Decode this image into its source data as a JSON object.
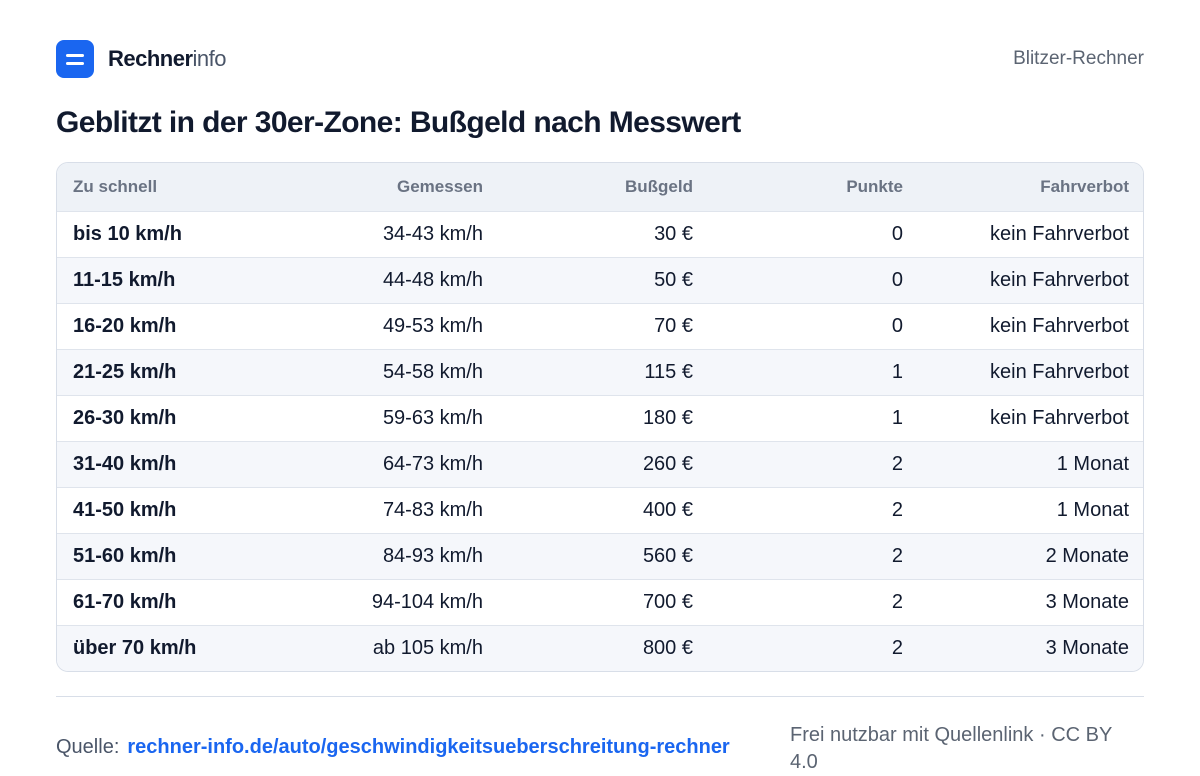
{
  "brand": {
    "bold": "Rechner",
    "light": "info"
  },
  "header": {
    "right_label": "Blitzer-Rechner"
  },
  "title": "Geblitzt in der 30er-Zone: Bußgeld nach Messwert",
  "table": {
    "columns": [
      "Zu schnell",
      "Gemessen",
      "Bußgeld",
      "Punkte",
      "Fahrverbot"
    ],
    "rows": [
      [
        "bis 10 km/h",
        "34-43 km/h",
        "30 €",
        "0",
        "kein Fahrverbot"
      ],
      [
        "11-15 km/h",
        "44-48 km/h",
        "50 €",
        "0",
        "kein Fahrverbot"
      ],
      [
        "16-20 km/h",
        "49-53 km/h",
        "70 €",
        "0",
        "kein Fahrverbot"
      ],
      [
        "21-25 km/h",
        "54-58 km/h",
        "115 €",
        "1",
        "kein Fahrverbot"
      ],
      [
        "26-30 km/h",
        "59-63 km/h",
        "180 €",
        "1",
        "kein Fahrverbot"
      ],
      [
        "31-40 km/h",
        "64-73 km/h",
        "260 €",
        "2",
        "1 Monat"
      ],
      [
        "41-50 km/h",
        "74-83 km/h",
        "400 €",
        "2",
        "1 Monat"
      ],
      [
        "51-60 km/h",
        "84-93 km/h",
        "560 €",
        "2",
        "2 Monate"
      ],
      [
        "61-70 km/h",
        "94-104 km/h",
        "700 €",
        "2",
        "3 Monate"
      ],
      [
        "über 70 km/h",
        "ab 105 km/h",
        "800 €",
        "2",
        "3 Monate"
      ]
    ]
  },
  "footer": {
    "source_label": "Quelle:",
    "source_link": "rechner-info.de/auto/geschwindigkeitsueberschreitung-rechner",
    "license": "Frei nutzbar mit Quellenlink · CC BY 4.0"
  },
  "colors": {
    "accent": "#1a66f0",
    "text": "#111a2e",
    "header_bg": "#eef2f7"
  }
}
